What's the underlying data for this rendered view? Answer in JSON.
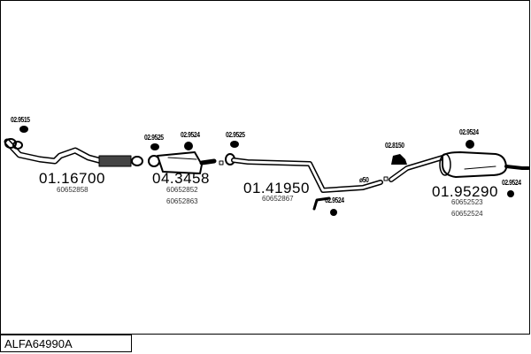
{
  "diagram_code": "ALFA64990A",
  "parts": [
    {
      "number": "01.16700",
      "oem": [
        "60652858"
      ]
    },
    {
      "number": "04.3458",
      "oem": [
        "60652852",
        "60652863"
      ]
    },
    {
      "number": "01.41950",
      "oem": [
        "60652867"
      ]
    },
    {
      "number": "01.95290",
      "oem": [
        "60652523",
        "60652524"
      ]
    }
  ],
  "accessories": [
    "02.9515",
    "02.9525",
    "02.9524",
    "02.9525",
    "02.9524",
    "02.8150",
    "02.9524",
    "02.9524"
  ],
  "pipe_note": "ø50"
}
